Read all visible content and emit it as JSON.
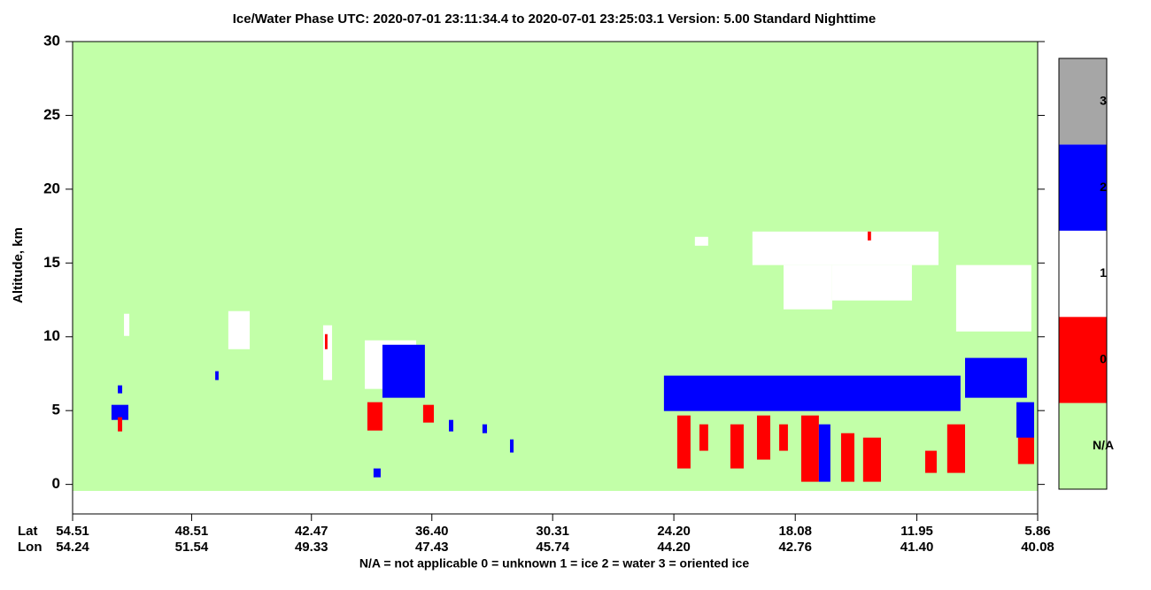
{
  "chart_data": {
    "type": "phase-image",
    "title": "Ice/Water Phase    UTC:  2020-07-01   23:11:34.4  to  2020-07-01   23:25:03.1    Version: 5.00  Standard Nighttime",
    "y_label": "Altitude, km",
    "ylim": [
      -2,
      30
    ],
    "yticks": [
      0,
      5,
      10,
      15,
      20,
      25,
      30
    ],
    "xlim": [
      54.51,
      5.86
    ],
    "x_row_labels": [
      "Lat",
      "Lon"
    ],
    "xticks": [
      {
        "value": 54.51,
        "label": "54.51"
      },
      {
        "value": 48.51,
        "label": "48.51"
      },
      {
        "value": 42.47,
        "label": "42.47"
      },
      {
        "value": 36.4,
        "label": "36.40"
      },
      {
        "value": 30.31,
        "label": "30.31"
      },
      {
        "value": 24.2,
        "label": "24.20"
      },
      {
        "value": 18.08,
        "label": "18.08"
      },
      {
        "value": 11.95,
        "label": "11.95"
      },
      {
        "value": 5.86,
        "label": "5.86"
      }
    ],
    "lon_labels": [
      "54.24",
      "51.54",
      "49.33",
      "47.43",
      "45.74",
      "44.20",
      "42.76",
      "41.40",
      "40.08"
    ],
    "legend_text": "N/A = not applicable     0 = unknown     1 = ice     2 = water     3 = oriented ice",
    "colorbar": [
      {
        "label": "N/A",
        "color": "#c2ffa8"
      },
      {
        "label": "0",
        "color": "#ff0000"
      },
      {
        "label": "1",
        "color": "#ffffff"
      },
      {
        "label": "2",
        "color": "#0000ff"
      },
      {
        "label": "3",
        "color": "#a6a6a6"
      }
    ],
    "regions": [
      [
        51.92,
        51.65,
        11.56,
        10.06,
        1
      ],
      [
        52.55,
        51.7,
        5.39,
        4.37,
        2
      ],
      [
        52.23,
        52.01,
        4.55,
        3.59,
        0
      ],
      [
        52.23,
        52.01,
        6.71,
        6.17,
        2
      ],
      [
        47.32,
        47.15,
        7.67,
        7.07,
        2
      ],
      [
        46.66,
        45.58,
        11.74,
        9.16,
        1
      ],
      [
        41.88,
        41.43,
        10.78,
        7.07,
        1
      ],
      [
        41.79,
        41.66,
        10.18,
        9.16,
        0
      ],
      [
        39.78,
        37.19,
        9.76,
        6.47,
        1
      ],
      [
        38.89,
        36.75,
        9.46,
        5.87,
        2
      ],
      [
        39.65,
        38.89,
        5.57,
        3.65,
        0
      ],
      [
        36.84,
        36.3,
        5.39,
        4.19,
        0
      ],
      [
        39.34,
        38.98,
        1.08,
        0.48,
        2
      ],
      [
        35.54,
        35.32,
        4.37,
        3.59,
        2
      ],
      [
        33.85,
        33.62,
        4.07,
        3.47,
        2
      ],
      [
        32.46,
        32.28,
        3.05,
        2.16,
        2
      ],
      [
        23.14,
        22.47,
        16.77,
        16.17,
        1
      ],
      [
        20.24,
        10.86,
        17.13,
        14.86,
        1
      ],
      [
        18.67,
        16.22,
        14.86,
        11.86,
        1
      ],
      [
        16.22,
        12.2,
        14.86,
        12.46,
        1
      ],
      [
        14.43,
        14.26,
        17.13,
        16.53,
        0
      ],
      [
        9.97,
        6.18,
        14.86,
        10.36,
        1
      ],
      [
        24.7,
        9.75,
        7.37,
        4.97,
        2
      ],
      [
        9.52,
        6.4,
        8.57,
        5.87,
        2
      ],
      [
        24.03,
        23.36,
        4.67,
        1.08,
        0
      ],
      [
        22.91,
        22.47,
        4.07,
        2.28,
        0
      ],
      [
        21.35,
        20.68,
        4.07,
        1.08,
        0
      ],
      [
        20.01,
        19.34,
        4.67,
        1.68,
        0
      ],
      [
        18.89,
        18.45,
        4.07,
        2.28,
        0
      ],
      [
        17.78,
        16.89,
        4.67,
        0.18,
        0
      ],
      [
        16.89,
        16.31,
        4.07,
        0.18,
        2
      ],
      [
        15.77,
        15.1,
        3.47,
        0.18,
        0
      ],
      [
        14.66,
        13.76,
        3.17,
        0.18,
        0
      ],
      [
        11.53,
        10.95,
        2.28,
        0.78,
        0
      ],
      [
        10.42,
        9.52,
        4.07,
        0.78,
        0
      ],
      [
        6.85,
        6.04,
        5.27,
        1.38,
        0
      ],
      [
        6.93,
        6.04,
        5.57,
        3.17,
        2
      ]
    ]
  }
}
